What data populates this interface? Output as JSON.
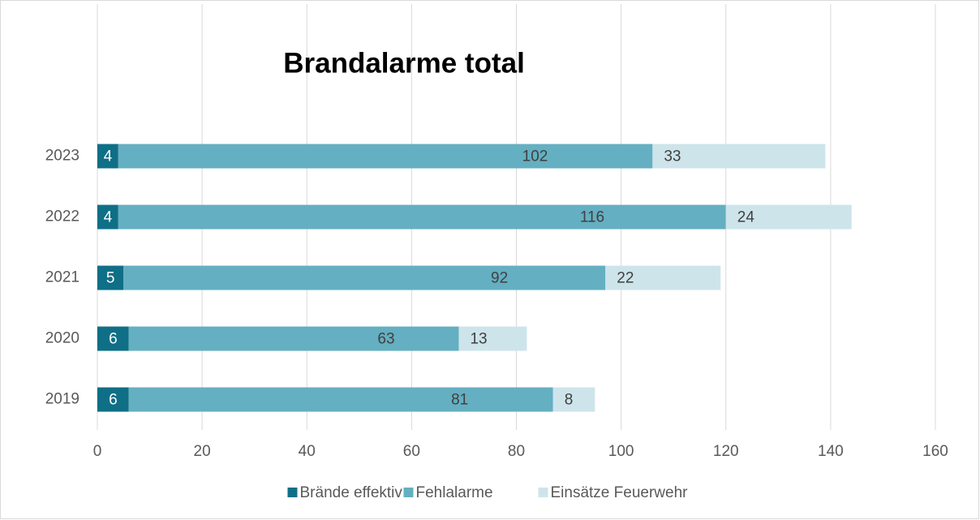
{
  "chart_data": {
    "type": "stacked_barh",
    "title": "Brandalarme total",
    "categories": [
      "2019",
      "2020",
      "2021",
      "2022",
      "2023"
    ],
    "series": [
      {
        "name": "Brände effektiv",
        "color": "#0f6f87",
        "values": [
          6,
          6,
          5,
          4,
          4
        ]
      },
      {
        "name": "Fehlalarme",
        "color": "#64afc1",
        "values": [
          81,
          63,
          92,
          116,
          102
        ]
      },
      {
        "name": "Einsätze Feuerwehr",
        "color": "#cee4eb",
        "values": [
          8,
          13,
          22,
          24,
          33
        ]
      }
    ],
    "xlim": [
      0,
      160
    ],
    "xticks": [
      0,
      20,
      40,
      60,
      80,
      100,
      120,
      140,
      160
    ],
    "grid": true,
    "legend": "bottom"
  }
}
